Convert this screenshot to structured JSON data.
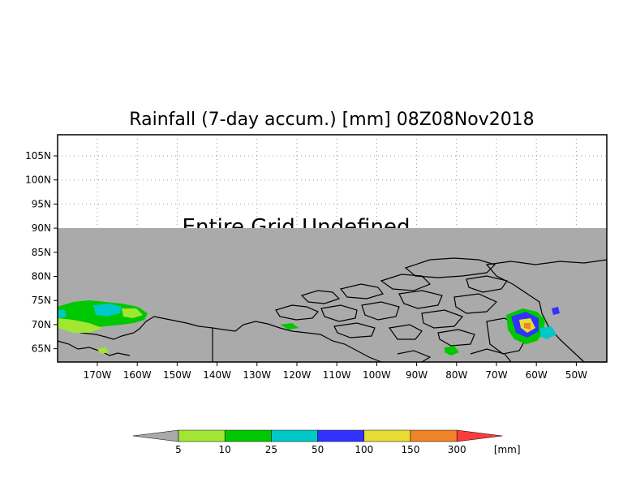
{
  "map": {
    "title": "Rainfall (7-day accum.) [mm] 08Z08Nov2018",
    "overlay_text": "Entire Grid Undefined",
    "lat_labels": [
      "105N",
      "100N",
      "95N",
      "90N",
      "85N",
      "80N",
      "75N",
      "70N",
      "65N"
    ],
    "lon_labels": [
      "170W",
      "160W",
      "150W",
      "140W",
      "130W",
      "120W",
      "110W",
      "100W",
      "90W",
      "80W",
      "70W",
      "60W",
      "50W"
    ],
    "undefined_color": "#aaaaaa",
    "land_outline_color": "#000000"
  },
  "legend": {
    "unit": "[mm]",
    "tick_labels": [
      "5",
      "10",
      "25",
      "50",
      "100",
      "150",
      "300"
    ],
    "colors": [
      "#a0e632",
      "#00c800",
      "#00c8c8",
      "#3232ff",
      "#e6dc32",
      "#f08228",
      "#fa3c3c"
    ],
    "below_min_color": "#aaaaaa"
  }
}
